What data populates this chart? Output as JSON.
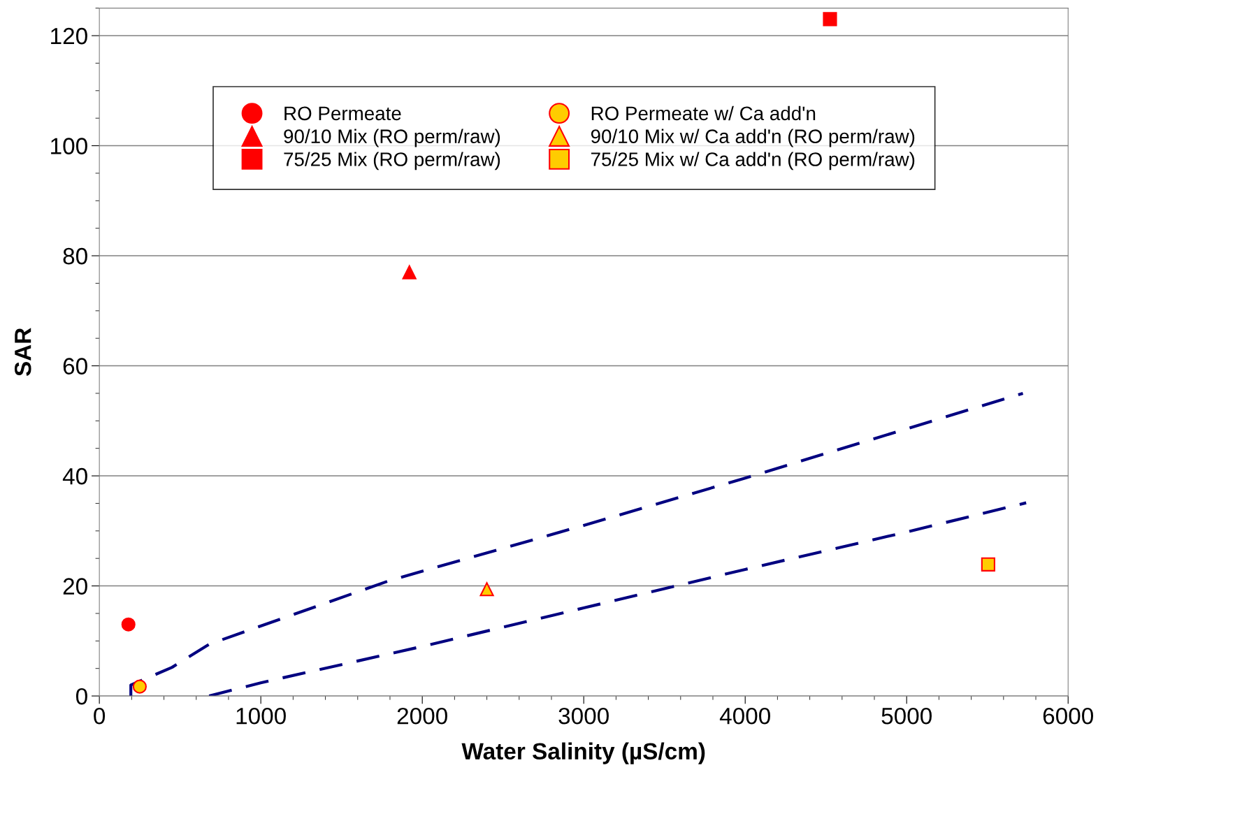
{
  "chart_data": {
    "type": "scatter",
    "xlabel": "Water Salinity (µS/cm)",
    "ylabel": "SAR",
    "xlim": [
      0,
      6000
    ],
    "xticks": [
      0,
      1000,
      2000,
      3000,
      4000,
      5000,
      6000
    ],
    "ylim": [
      0,
      125
    ],
    "yticks": [
      0,
      20,
      40,
      60,
      80,
      100,
      120
    ],
    "grid": "y",
    "legend": "top",
    "series": [
      {
        "name": "RO Permeate",
        "color": "#ff0000",
        "marker": "circle",
        "x": [
          180
        ],
        "values": [
          13
        ]
      },
      {
        "name": "90/10 Mix (RO perm/raw)",
        "color": "#ff0000",
        "marker": "triangle",
        "x": [
          1920
        ],
        "values": [
          77
        ]
      },
      {
        "name": "75/25 Mix (RO perm/raw)",
        "color": "#ff0000",
        "marker": "square",
        "x": [
          4525
        ],
        "values": [
          123
        ]
      },
      {
        "name": "RO Permeate w/ Ca add'n",
        "color": "#ffcc00",
        "marker": "circle",
        "x": [
          250
        ],
        "values": [
          1.7
        ]
      },
      {
        "name": "90/10 Mix w/ Ca add'n (RO perm/raw)",
        "color": "#ffcc00",
        "marker": "triangle",
        "x": [
          2400
        ],
        "values": [
          19.4
        ]
      },
      {
        "name": "75/25 Mix w/ Ca add'n (RO perm/raw)",
        "color": "#ffcc00",
        "marker": "square",
        "x": [
          5505
        ],
        "values": [
          23.9
        ]
      },
      {
        "type": "line",
        "color": "#000080",
        "line_style": "dashed",
        "marker": "none",
        "x": [
          195,
          195,
          450,
          680,
          1800,
          3000,
          4000,
          5720
        ],
        "values": [
          0,
          2,
          5.2,
          9.4,
          21,
          31,
          39.6,
          55
        ]
      },
      {
        "type": "line",
        "color": "#000080",
        "line_style": "dashed",
        "marker": "none",
        "x": [
          680,
          1000,
          2000,
          3000,
          3500,
          4000,
          5000,
          5740
        ],
        "values": [
          0,
          2.4,
          9,
          16,
          19.5,
          23,
          29.8,
          35.1
        ]
      }
    ]
  }
}
